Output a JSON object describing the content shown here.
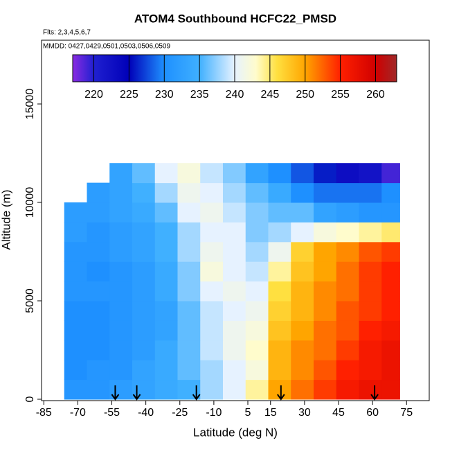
{
  "chart_data": {
    "type": "heatmap",
    "title": "ATOM4 Southbound HCFC22_PMSD",
    "annotations": [
      "Flts: 2,3,4,5,6,7",
      "MMDD: 0427,0429,0501,0503,0506,0509"
    ],
    "x_label": "Latitude (deg N)",
    "y_label": "Altitude (m)",
    "xlim": [
      -86,
      85
    ],
    "xticks": [
      -85,
      -70,
      -55,
      -40,
      -25,
      -10,
      5,
      15,
      30,
      45,
      60,
      75
    ],
    "ylim": [
      -70,
      18240
    ],
    "yticks": [
      0,
      5000,
      10000,
      15000
    ],
    "x_edges": [
      -76,
      -66,
      -56,
      -46,
      -36,
      -26,
      -16,
      -6,
      4,
      14,
      24,
      34,
      44,
      54,
      64,
      72
    ],
    "y_edges": [
      0,
      1000,
      2000,
      3000,
      4000,
      5000,
      6000,
      7000,
      8000,
      9000,
      10000,
      11000,
      12000
    ],
    "z": [
      [
        231,
        231,
        232,
        233,
        234,
        235,
        238,
        240,
        244,
        250,
        252,
        254,
        256,
        257,
        257
      ],
      [
        230,
        231,
        231,
        233,
        234,
        236,
        238,
        240,
        242,
        249,
        251,
        253,
        255,
        256,
        257
      ],
      [
        230,
        230,
        231,
        232,
        234,
        236,
        239,
        241,
        243,
        249,
        251,
        252,
        254,
        256,
        257
      ],
      [
        230,
        230,
        231,
        232,
        233,
        236,
        239,
        241,
        242,
        248,
        250,
        252,
        253,
        255,
        256
      ],
      [
        230,
        230,
        231,
        232,
        233,
        236,
        239,
        240,
        241,
        247,
        249,
        251,
        253,
        254,
        255
      ],
      [
        231,
        231,
        231,
        232,
        234,
        237,
        240,
        241,
        240,
        246,
        249,
        251,
        252,
        254,
        255
      ],
      [
        231,
        230,
        231,
        232,
        234,
        237,
        242,
        240,
        239,
        244,
        248,
        250,
        252,
        254,
        255
      ],
      [
        231,
        231,
        232,
        233,
        235,
        238,
        241,
        240,
        238,
        241,
        247,
        250,
        251,
        253,
        254
      ],
      [
        232,
        231,
        232,
        233,
        235,
        238,
        240,
        240,
        237,
        238,
        240,
        242,
        243,
        244,
        245
      ],
      [
        232,
        232,
        233,
        234,
        236,
        240,
        241,
        239,
        237,
        236,
        236,
        233,
        232,
        231,
        231
      ],
      [
        null,
        232,
        233,
        235,
        238,
        241,
        240,
        238,
        236,
        234,
        230,
        229,
        229,
        229,
        230
      ],
      [
        null,
        null,
        233,
        236,
        240,
        242,
        239,
        237,
        233,
        230,
        228,
        226,
        223,
        222,
        219
      ]
    ],
    "arrows": [
      -53.5,
      -44,
      -17.7,
      19.6,
      60.9
    ],
    "colorbar_lim": [
      217,
      263
    ],
    "colorbar_ticks": [
      220,
      225,
      230,
      235,
      240,
      245,
      250,
      255,
      260
    ],
    "colorscale": [
      [
        217,
        "#8a2be2"
      ],
      [
        220,
        "#2020d0"
      ],
      [
        225,
        "#0000b8"
      ],
      [
        230,
        "#1e90ff"
      ],
      [
        235,
        "#40b0ff"
      ],
      [
        240,
        "#e6f2ff"
      ],
      [
        243,
        "#fffccc"
      ],
      [
        246,
        "#ffe040"
      ],
      [
        250,
        "#ffa500"
      ],
      [
        255,
        "#ff2000"
      ],
      [
        260,
        "#d00000"
      ],
      [
        263,
        "#a02828"
      ]
    ]
  }
}
